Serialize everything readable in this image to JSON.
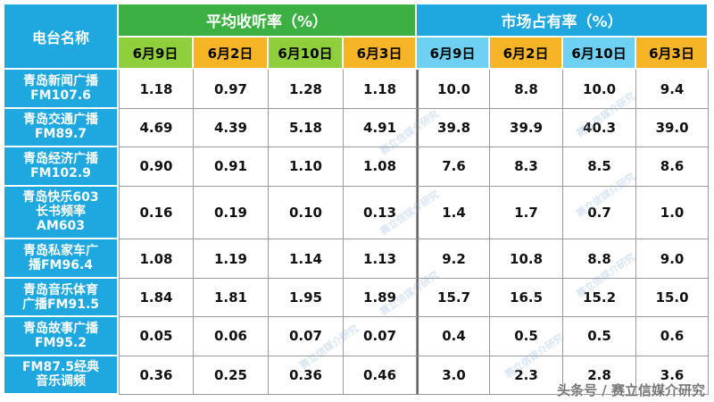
{
  "header": {
    "station_label": "电台名称",
    "group_avg": "平均收听率（%）",
    "group_share": "市场占有率（%）",
    "dates": [
      "6月9日",
      "6月2日",
      "6月10日",
      "6月3日"
    ]
  },
  "rows": [
    {
      "name": [
        "青岛新闻广播",
        "FM107.6"
      ],
      "avg": [
        "1.18",
        "0.97",
        "1.28",
        "1.18"
      ],
      "share": [
        "10.0",
        "8.8",
        "10.0",
        "9.4"
      ]
    },
    {
      "name": [
        "青岛交通广播",
        "FM89.7"
      ],
      "avg": [
        "4.69",
        "4.39",
        "5.18",
        "4.91"
      ],
      "share": [
        "39.8",
        "39.9",
        "40.3",
        "39.0"
      ]
    },
    {
      "name": [
        "青岛经济广播",
        "FM102.9"
      ],
      "avg": [
        "0.90",
        "0.91",
        "1.10",
        "1.08"
      ],
      "share": [
        "7.6",
        "8.3",
        "8.5",
        "8.6"
      ]
    },
    {
      "name": [
        "青岛快乐603",
        "长书频率",
        "AM603"
      ],
      "avg": [
        "0.16",
        "0.19",
        "0.10",
        "0.13"
      ],
      "share": [
        "1.4",
        "1.7",
        "0.7",
        "1.0"
      ]
    },
    {
      "name": [
        "青岛私家车广",
        "播FM96.4"
      ],
      "avg": [
        "1.08",
        "1.19",
        "1.14",
        "1.13"
      ],
      "share": [
        "9.2",
        "10.8",
        "8.8",
        "9.0"
      ]
    },
    {
      "name": [
        "青岛音乐体育",
        "广播FM91.5"
      ],
      "avg": [
        "1.84",
        "1.81",
        "1.95",
        "1.89"
      ],
      "share": [
        "15.7",
        "16.5",
        "15.2",
        "15.0"
      ]
    },
    {
      "name": [
        "青岛故事广播",
        "FM95.2"
      ],
      "avg": [
        "0.05",
        "0.06",
        "0.07",
        "0.07"
      ],
      "share": [
        "0.4",
        "0.5",
        "0.5",
        "0.6"
      ]
    },
    {
      "name": [
        "FM87.5经典",
        "音乐调频"
      ],
      "avg": [
        "0.36",
        "0.25",
        "0.36",
        "0.46"
      ],
      "share": [
        "3.0",
        "2.3",
        "2.8",
        "3.6"
      ]
    }
  ],
  "watermark": "赛立信媒介研究",
  "footer": "头条号 / 赛立信媒介研究",
  "colors": {
    "station_header": "#1fa8e0",
    "avg_header": "#3cb043",
    "share_header": "#1fa8e0",
    "date_green": "#8fcf3c",
    "date_orange": "#f6b526",
    "date_light_blue": "#6ed0f2"
  }
}
